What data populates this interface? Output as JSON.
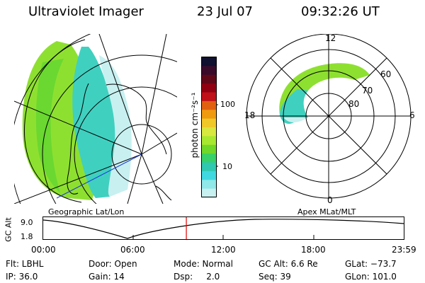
{
  "header": {
    "title": "Ultraviolet Imager",
    "date": "23 Jul 07",
    "time": "09:32:26 UT"
  },
  "left_panel": {
    "caption": "Geographic Lat/Lon"
  },
  "right_panel": {
    "caption": "Apex MLat/MLT",
    "mlt_labels": {
      "top": "12",
      "bottom": "0",
      "left": "18",
      "right": "6"
    },
    "lat_labels": [
      "60",
      "70",
      "80"
    ]
  },
  "colorbar": {
    "unit_label": "photon cm⁻²s⁻¹",
    "ticks": [
      "100",
      "10"
    ],
    "colors": [
      "#101030",
      "#3a0a2a",
      "#600818",
      "#900010",
      "#c01018",
      "#e06010",
      "#f09a10",
      "#f0c828",
      "#d8e840",
      "#a8e830",
      "#70d828",
      "#38d068",
      "#30c8b0",
      "#40d8e0",
      "#90e8e8",
      "#c8f0f0"
    ]
  },
  "altitude_plot": {
    "ylabel": "GC Alt",
    "yticks": [
      "9.0",
      "1.8"
    ],
    "xticks": [
      "00:00",
      "06:00",
      "12:00",
      "18:00",
      "23:59"
    ],
    "current_fraction": 0.397
  },
  "info": {
    "flt": "Flt: LBHL",
    "ip": "IP: 36.0",
    "door": "Door: Open",
    "gain": "Gain: 14",
    "mode": "Mode: Normal",
    "dsp": "Dsp:     2.0",
    "gcalt": "GC Alt: 6.6 Re",
    "seq": "Seq: 39",
    "glat": "GLat: −73.7",
    "glon": "GLon: 101.0"
  }
}
